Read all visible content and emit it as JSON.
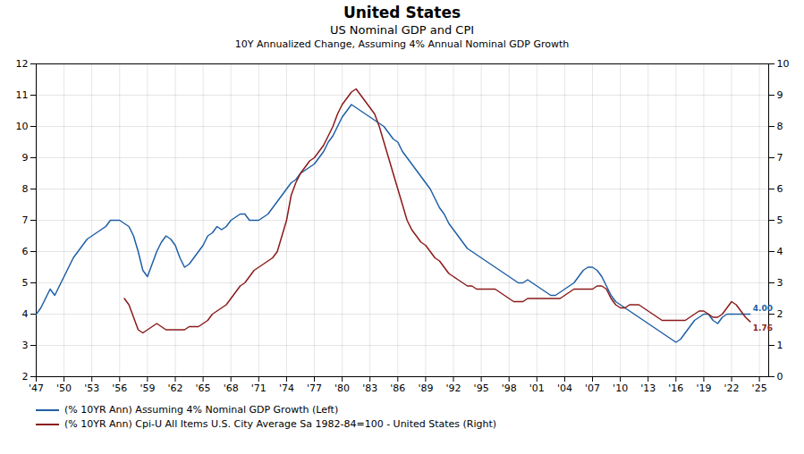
{
  "chart_data": {
    "type": "line",
    "title": "United States",
    "subtitle": [
      "US Nominal GDP and CPI",
      "10Y Annualized Change, Assuming 4% Annual Nominal GDP Growth"
    ],
    "xlim": [
      1947,
      2026
    ],
    "xticks": [
      {
        "value": 1947,
        "label": "'47"
      },
      {
        "value": 1950,
        "label": "'50"
      },
      {
        "value": 1953,
        "label": "'53"
      },
      {
        "value": 1956,
        "label": "'56"
      },
      {
        "value": 1959,
        "label": "'59"
      },
      {
        "value": 1962,
        "label": "'62"
      },
      {
        "value": 1965,
        "label": "'65"
      },
      {
        "value": 1968,
        "label": "'68"
      },
      {
        "value": 1971,
        "label": "'71"
      },
      {
        "value": 1974,
        "label": "'74"
      },
      {
        "value": 1977,
        "label": "'77"
      },
      {
        "value": 1980,
        "label": "'80"
      },
      {
        "value": 1983,
        "label": "'83"
      },
      {
        "value": 1986,
        "label": "'86"
      },
      {
        "value": 1989,
        "label": "'89"
      },
      {
        "value": 1992,
        "label": "'92"
      },
      {
        "value": 1995,
        "label": "'95"
      },
      {
        "value": 1998,
        "label": "'98"
      },
      {
        "value": 2001,
        "label": "'01"
      },
      {
        "value": 2004,
        "label": "'04"
      },
      {
        "value": 2007,
        "label": "'07"
      },
      {
        "value": 2010,
        "label": "'10"
      },
      {
        "value": 2013,
        "label": "'13"
      },
      {
        "value": 2016,
        "label": "'16"
      },
      {
        "value": 2019,
        "label": "'19"
      },
      {
        "value": 2022,
        "label": "'22"
      },
      {
        "value": 2025,
        "label": "'25"
      }
    ],
    "ylim": [
      2,
      12
    ],
    "yticks": [
      2,
      3,
      4,
      5,
      6,
      7,
      8,
      9,
      10,
      11,
      12
    ],
    "y2lim": [
      0,
      10
    ],
    "y2ticks": [
      0,
      1,
      2,
      3,
      4,
      5,
      6,
      7,
      8,
      9,
      10
    ],
    "grid": true,
    "legend": "bottom",
    "series": [
      {
        "name": "(% 10YR Ann) Assuming 4% Nominal GDP Growth  (Left)",
        "color": "#1f5fa6",
        "axis": "y",
        "x": [
          1947.0,
          1947.5,
          1948.0,
          1948.5,
          1949.0,
          1949.5,
          1950.0,
          1950.5,
          1951.0,
          1951.5,
          1952.0,
          1952.5,
          1953.0,
          1953.5,
          1954.0,
          1954.5,
          1955.0,
          1955.5,
          1956.0,
          1956.5,
          1957.0,
          1957.5,
          1958.0,
          1958.5,
          1959.0,
          1959.5,
          1960.0,
          1960.5,
          1961.0,
          1961.5,
          1962.0,
          1962.5,
          1963.0,
          1963.5,
          1964.0,
          1964.5,
          1965.0,
          1965.5,
          1966.0,
          1966.5,
          1967.0,
          1967.5,
          1968.0,
          1968.5,
          1969.0,
          1969.5,
          1970.0,
          1970.5,
          1971.0,
          1971.5,
          1972.0,
          1972.5,
          1973.0,
          1973.5,
          1974.0,
          1974.5,
          1975.0,
          1975.5,
          1976.0,
          1976.5,
          1977.0,
          1977.5,
          1978.0,
          1978.5,
          1979.0,
          1979.5,
          1980.0,
          1980.5,
          1981.0,
          1981.5,
          1982.0,
          1982.5,
          1983.0,
          1983.5,
          1984.0,
          1984.5,
          1985.0,
          1985.5,
          1986.0,
          1986.5,
          1987.0,
          1987.5,
          1988.0,
          1988.5,
          1989.0,
          1989.5,
          1990.0,
          1990.5,
          1991.0,
          1991.5,
          1992.0,
          1992.5,
          1993.0,
          1993.5,
          1994.0,
          1994.5,
          1995.0,
          1995.5,
          1996.0,
          1996.5,
          1997.0,
          1997.5,
          1998.0,
          1998.5,
          1999.0,
          1999.5,
          2000.0,
          2000.5,
          2001.0,
          2001.5,
          2002.0,
          2002.5,
          2003.0,
          2003.5,
          2004.0,
          2004.5,
          2005.0,
          2005.5,
          2006.0,
          2006.5,
          2007.0,
          2007.5,
          2008.0,
          2008.5,
          2009.0,
          2009.5,
          2010.0,
          2010.5,
          2011.0,
          2011.5,
          2012.0,
          2012.5,
          2013.0,
          2013.5,
          2014.0,
          2014.5,
          2015.0,
          2015.5,
          2016.0,
          2016.5,
          2017.0,
          2017.5,
          2018.0,
          2018.5,
          2019.0,
          2019.5,
          2020.0,
          2020.5,
          2021.0,
          2021.5,
          2022.0,
          2022.5,
          2023.0,
          2023.5,
          2024.0
        ],
        "values": [
          4.0,
          4.2,
          4.5,
          4.8,
          4.6,
          4.9,
          5.2,
          5.5,
          5.8,
          6.0,
          6.2,
          6.4,
          6.5,
          6.6,
          6.7,
          6.8,
          7.0,
          7.0,
          7.0,
          6.9,
          6.8,
          6.5,
          6.0,
          5.4,
          5.2,
          5.6,
          6.0,
          6.3,
          6.5,
          6.4,
          6.2,
          5.8,
          5.5,
          5.6,
          5.8,
          6.0,
          6.2,
          6.5,
          6.6,
          6.8,
          6.7,
          6.8,
          7.0,
          7.1,
          7.2,
          7.2,
          7.0,
          7.0,
          7.0,
          7.1,
          7.2,
          7.4,
          7.6,
          7.8,
          8.0,
          8.2,
          8.3,
          8.5,
          8.6,
          8.7,
          8.8,
          9.0,
          9.2,
          9.5,
          9.7,
          10.0,
          10.3,
          10.5,
          10.7,
          10.6,
          10.5,
          10.4,
          10.3,
          10.2,
          10.1,
          10.0,
          9.8,
          9.6,
          9.5,
          9.2,
          9.0,
          8.8,
          8.6,
          8.4,
          8.2,
          8.0,
          7.7,
          7.4,
          7.2,
          6.9,
          6.7,
          6.5,
          6.3,
          6.1,
          6.0,
          5.9,
          5.8,
          5.7,
          5.6,
          5.5,
          5.4,
          5.3,
          5.2,
          5.1,
          5.0,
          5.0,
          5.1,
          5.0,
          4.9,
          4.8,
          4.7,
          4.6,
          4.6,
          4.7,
          4.8,
          4.9,
          5.0,
          5.2,
          5.4,
          5.5,
          5.5,
          5.4,
          5.2,
          4.9,
          4.6,
          4.4,
          4.3,
          4.2,
          4.1,
          4.0,
          3.9,
          3.8,
          3.7,
          3.6,
          3.5,
          3.4,
          3.3,
          3.2,
          3.1,
          3.2,
          3.4,
          3.6,
          3.8,
          3.9,
          4.0,
          4.0,
          3.8,
          3.7,
          3.9,
          4.0,
          4.0,
          4.0,
          4.0,
          4.0,
          4.0
        ]
      },
      {
        "name": "(% 10YR Ann) Cpi-U All Items U.S. City Average Sa 1982-84=100 - United States  (Right)",
        "color": "#8b1a1a",
        "axis": "y2",
        "x": [
          1956.5,
          1957.0,
          1957.5,
          1958.0,
          1958.5,
          1959.0,
          1959.5,
          1960.0,
          1960.5,
          1961.0,
          1961.5,
          1962.0,
          1962.5,
          1963.0,
          1963.5,
          1964.0,
          1964.5,
          1965.0,
          1965.5,
          1966.0,
          1966.5,
          1967.0,
          1967.5,
          1968.0,
          1968.5,
          1969.0,
          1969.5,
          1970.0,
          1970.5,
          1971.0,
          1971.5,
          1972.0,
          1972.5,
          1973.0,
          1973.5,
          1974.0,
          1974.5,
          1975.0,
          1975.5,
          1976.0,
          1976.5,
          1977.0,
          1977.5,
          1978.0,
          1978.5,
          1979.0,
          1979.5,
          1980.0,
          1980.5,
          1981.0,
          1981.5,
          1982.0,
          1982.5,
          1983.0,
          1983.5,
          1984.0,
          1984.5,
          1985.0,
          1985.5,
          1986.0,
          1986.5,
          1987.0,
          1987.5,
          1988.0,
          1988.5,
          1989.0,
          1989.5,
          1990.0,
          1990.5,
          1991.0,
          1991.5,
          1992.0,
          1992.5,
          1993.0,
          1993.5,
          1994.0,
          1994.5,
          1995.0,
          1995.5,
          1996.0,
          1996.5,
          1997.0,
          1997.5,
          1998.0,
          1998.5,
          1999.0,
          1999.5,
          2000.0,
          2000.5,
          2001.0,
          2001.5,
          2002.0,
          2002.5,
          2003.0,
          2003.5,
          2004.0,
          2004.5,
          2005.0,
          2005.5,
          2006.0,
          2006.5,
          2007.0,
          2007.5,
          2008.0,
          2008.5,
          2009.0,
          2009.5,
          2010.0,
          2010.5,
          2011.0,
          2011.5,
          2012.0,
          2012.5,
          2013.0,
          2013.5,
          2014.0,
          2014.5,
          2015.0,
          2015.5,
          2016.0,
          2016.5,
          2017.0,
          2017.5,
          2018.0,
          2018.5,
          2019.0,
          2019.5,
          2020.0,
          2020.5,
          2021.0,
          2021.5,
          2022.0,
          2022.5,
          2023.0,
          2023.5,
          2024.0
        ],
        "values": [
          2.5,
          2.3,
          1.9,
          1.5,
          1.4,
          1.5,
          1.6,
          1.7,
          1.6,
          1.5,
          1.5,
          1.5,
          1.5,
          1.5,
          1.6,
          1.6,
          1.6,
          1.7,
          1.8,
          2.0,
          2.1,
          2.2,
          2.3,
          2.5,
          2.7,
          2.9,
          3.0,
          3.2,
          3.4,
          3.5,
          3.6,
          3.7,
          3.8,
          4.0,
          4.5,
          5.0,
          5.8,
          6.2,
          6.5,
          6.7,
          6.9,
          7.0,
          7.2,
          7.4,
          7.7,
          8.0,
          8.4,
          8.7,
          8.9,
          9.1,
          9.2,
          9.0,
          8.8,
          8.6,
          8.4,
          8.0,
          7.5,
          7.0,
          6.5,
          6.0,
          5.5,
          5.0,
          4.7,
          4.5,
          4.3,
          4.2,
          4.0,
          3.8,
          3.7,
          3.5,
          3.3,
          3.2,
          3.1,
          3.0,
          2.9,
          2.9,
          2.8,
          2.8,
          2.8,
          2.8,
          2.8,
          2.7,
          2.6,
          2.5,
          2.4,
          2.4,
          2.4,
          2.5,
          2.5,
          2.5,
          2.5,
          2.5,
          2.5,
          2.5,
          2.5,
          2.6,
          2.7,
          2.8,
          2.8,
          2.8,
          2.8,
          2.8,
          2.9,
          2.9,
          2.8,
          2.5,
          2.3,
          2.2,
          2.2,
          2.3,
          2.3,
          2.3,
          2.2,
          2.1,
          2.0,
          1.9,
          1.8,
          1.8,
          1.8,
          1.8,
          1.8,
          1.8,
          1.9,
          2.0,
          2.1,
          2.1,
          2.0,
          1.9,
          1.9,
          2.0,
          2.2,
          2.4,
          2.3,
          2.1,
          1.9,
          1.76
        ]
      }
    ],
    "annotations": [
      {
        "text": "4.00",
        "x": 2024.0,
        "y": 4.0,
        "axis": "y"
      },
      {
        "text": "1.76",
        "x": 2024.0,
        "y": 1.76,
        "axis": "y2"
      }
    ]
  }
}
